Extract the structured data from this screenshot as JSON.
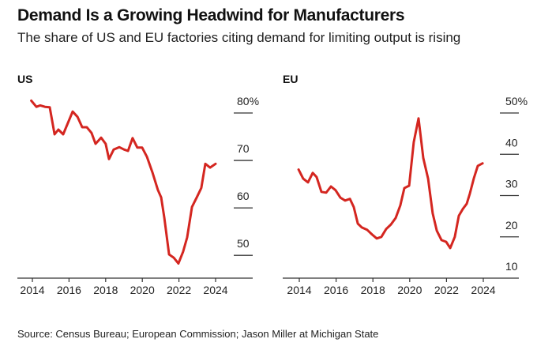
{
  "header": {
    "title": "Demand Is a Growing Headwind for Manufacturers",
    "subtitle": "The share of US and EU factories citing demand for limiting output is rising"
  },
  "footer": {
    "source": "Source: Census Bureau; European Commission; Jason Miller at Michigan State"
  },
  "colors": {
    "line": "#d42620",
    "axis": "#333333",
    "text": "#222222"
  },
  "chart_data": [
    {
      "type": "line",
      "title": "US",
      "xlabel": "",
      "ylabel": "",
      "xlim": [
        2013.9,
        2026.0
      ],
      "ylim": [
        45.2,
        80
      ],
      "xticks": [
        2014,
        2016,
        2018,
        2020,
        2022,
        2024
      ],
      "xtick_labels": [
        "2014",
        "2016",
        "2018",
        "2020",
        "2022",
        "2024"
      ],
      "yticks": [
        80,
        70,
        60,
        50
      ],
      "ytick_labels": [
        "80%",
        "70",
        "60",
        "50"
      ],
      "y_axis_side": "right",
      "grid": false,
      "series": [
        {
          "name": "US",
          "x": [
            2013.94,
            2014.22,
            2014.43,
            2014.69,
            2014.95,
            2015.21,
            2015.42,
            2015.68,
            2016.2,
            2016.46,
            2016.72,
            2016.97,
            2017.23,
            2017.45,
            2017.75,
            2018.0,
            2018.18,
            2018.44,
            2018.74,
            2019.0,
            2019.22,
            2019.47,
            2019.73,
            2019.99,
            2020.25,
            2020.55,
            2020.85,
            2021.03,
            2021.2,
            2021.46,
            2021.72,
            2021.97,
            2022.23,
            2022.45,
            2022.71,
            2022.97,
            2023.22,
            2023.44,
            2023.7,
            2024.0
          ],
          "values": [
            82.6,
            81.3,
            81.6,
            81.3,
            81.2,
            75.5,
            76.5,
            75.5,
            80.3,
            79.2,
            77.0,
            77.0,
            75.8,
            73.5,
            74.8,
            73.5,
            70.3,
            72.3,
            72.8,
            72.3,
            72.0,
            74.7,
            72.7,
            72.7,
            70.8,
            67.5,
            63.8,
            62.2,
            58.0,
            50.2,
            49.5,
            48.3,
            50.8,
            53.8,
            60.2,
            62.2,
            64.2,
            69.3,
            68.5,
            69.3
          ]
        }
      ]
    },
    {
      "type": "line",
      "title": "EU",
      "xlabel": "",
      "ylabel": "",
      "xlim": [
        2013.9,
        2026.0
      ],
      "ylim": [
        10,
        50
      ],
      "xticks": [
        2014,
        2016,
        2018,
        2020,
        2022,
        2024
      ],
      "xtick_labels": [
        "2014",
        "2016",
        "2018",
        "2020",
        "2022",
        "2024"
      ],
      "yticks": [
        50,
        40,
        30,
        20,
        10
      ],
      "ytick_labels": [
        "50%",
        "40",
        "30",
        "20",
        "10"
      ],
      "y_axis_side": "right",
      "grid": false,
      "series": [
        {
          "name": "EU",
          "x": [
            2013.96,
            2014.21,
            2014.47,
            2014.73,
            2014.94,
            2015.2,
            2015.46,
            2015.72,
            2015.97,
            2016.23,
            2016.49,
            2016.75,
            2016.96,
            2017.18,
            2017.39,
            2017.69,
            2017.95,
            2018.21,
            2018.46,
            2018.72,
            2018.98,
            2019.24,
            2019.49,
            2019.71,
            2019.97,
            2020.22,
            2020.48,
            2020.74,
            2021.0,
            2021.25,
            2021.47,
            2021.73,
            2021.98,
            2022.2,
            2022.45,
            2022.67,
            2022.88,
            2023.1,
            2023.27,
            2023.48,
            2023.7,
            2023.96
          ],
          "values": [
            36.3,
            34.1,
            33.2,
            35.5,
            34.5,
            30.9,
            30.7,
            32.2,
            31.3,
            29.5,
            28.8,
            29.2,
            27.2,
            23.2,
            22.3,
            21.7,
            20.6,
            19.6,
            20.0,
            21.9,
            23.0,
            24.6,
            27.6,
            31.8,
            32.4,
            42.9,
            48.7,
            39.1,
            34.1,
            25.7,
            21.5,
            19.2,
            18.8,
            17.3,
            20.0,
            25.1,
            26.7,
            28.0,
            30.5,
            34.1,
            37.2,
            37.8
          ]
        }
      ]
    }
  ]
}
